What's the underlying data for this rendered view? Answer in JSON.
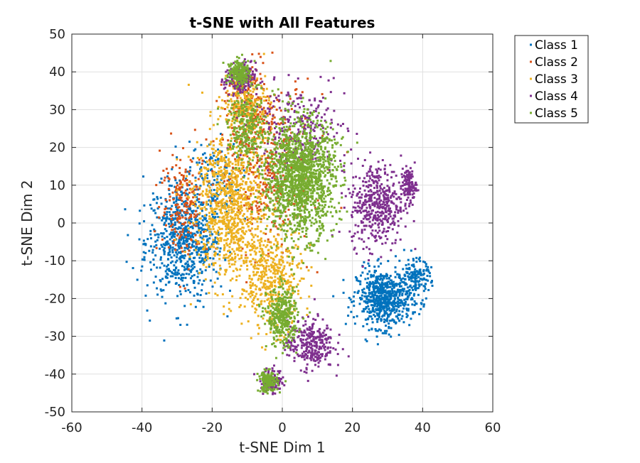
{
  "chart_data": {
    "type": "scatter",
    "title": "t-SNE with All Features",
    "xlabel": "t-SNE Dim 1",
    "ylabel": "t-SNE Dim 2",
    "xlim": [
      -60,
      60
    ],
    "ylim": [
      -50,
      50
    ],
    "xticks": [
      "-60",
      "-40",
      "-20",
      "0",
      "20",
      "40",
      "60"
    ],
    "yticks": [
      "-50",
      "-40",
      "-30",
      "-20",
      "-10",
      "0",
      "10",
      "20",
      "30",
      "40",
      "50"
    ],
    "grid": true,
    "legend_position": "outside-top-right",
    "series": [
      {
        "name": "Class 1",
        "color": "#0072BD",
        "clusters": [
          {
            "center": [
              -28,
              -5
            ],
            "spread": [
              10,
              14
            ],
            "count": 700
          },
          {
            "center": [
              -20,
              12
            ],
            "spread": [
              7,
              9
            ],
            "count": 120
          },
          {
            "center": [
              29,
              -20
            ],
            "spread": [
              7,
              7
            ],
            "count": 650
          },
          {
            "center": [
              38,
              -15
            ],
            "spread": [
              4,
              5
            ],
            "count": 150
          }
        ]
      },
      {
        "name": "Class 2",
        "color": "#D95319",
        "clusters": [
          {
            "center": [
              -28,
              5
            ],
            "spread": [
              6,
              12
            ],
            "count": 200
          },
          {
            "center": [
              -5,
              15
            ],
            "spread": [
              12,
              20
            ],
            "count": 450
          },
          {
            "center": [
              -10,
              30
            ],
            "spread": [
              6,
              8
            ],
            "count": 150
          }
        ]
      },
      {
        "name": "Class 3",
        "color": "#EDB120",
        "clusters": [
          {
            "center": [
              -15,
              5
            ],
            "spread": [
              9,
              18
            ],
            "count": 900
          },
          {
            "center": [
              -3,
              -15
            ],
            "spread": [
              8,
              12
            ],
            "count": 450
          },
          {
            "center": [
              -10,
              32
            ],
            "spread": [
              6,
              8
            ],
            "count": 220
          }
        ]
      },
      {
        "name": "Class 4",
        "color": "#7E2F8E",
        "clusters": [
          {
            "center": [
              -12,
              38
            ],
            "spread": [
              4,
              4
            ],
            "count": 180
          },
          {
            "center": [
              27,
              5
            ],
            "spread": [
              7,
              10
            ],
            "count": 450
          },
          {
            "center": [
              36,
              10
            ],
            "spread": [
              2,
              4
            ],
            "count": 120
          },
          {
            "center": [
              8,
              -32
            ],
            "spread": [
              6,
              6
            ],
            "count": 300
          },
          {
            "center": [
              -3,
              -42
            ],
            "spread": [
              3,
              3
            ],
            "count": 120
          },
          {
            "center": [
              5,
              25
            ],
            "spread": [
              12,
              10
            ],
            "count": 250
          }
        ]
      },
      {
        "name": "Class 5",
        "color": "#77AC30",
        "clusters": [
          {
            "center": [
              5,
              12
            ],
            "spread": [
              9,
              14
            ],
            "count": 1500
          },
          {
            "center": [
              -12,
              40
            ],
            "spread": [
              3,
              3
            ],
            "count": 200
          },
          {
            "center": [
              0,
              -25
            ],
            "spread": [
              4,
              7
            ],
            "count": 350
          },
          {
            "center": [
              -4,
              -42
            ],
            "spread": [
              2.5,
              2.5
            ],
            "count": 150
          },
          {
            "center": [
              -10,
              25
            ],
            "spread": [
              5,
              8
            ],
            "count": 250
          }
        ]
      }
    ]
  }
}
